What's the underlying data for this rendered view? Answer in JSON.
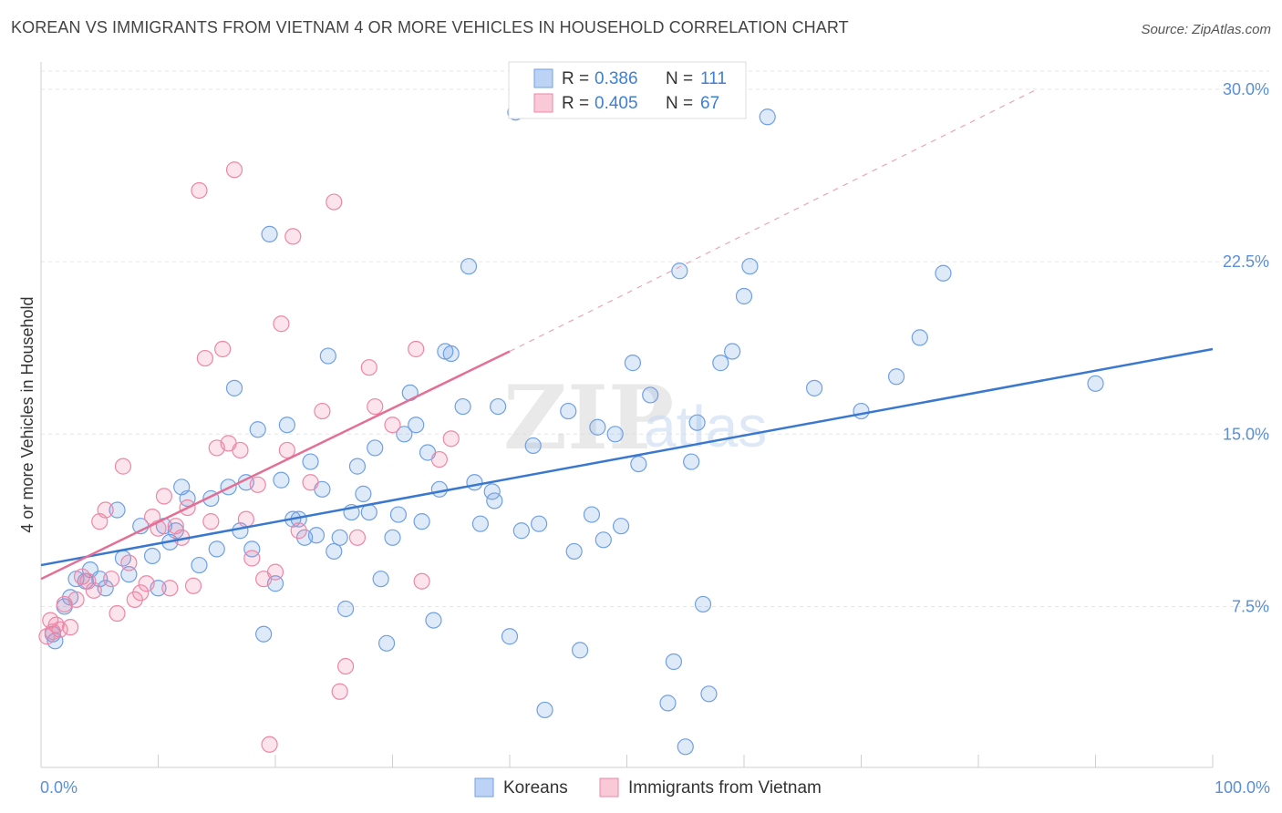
{
  "header": {
    "title": "KOREAN VS IMMIGRANTS FROM VIETNAM 4 OR MORE VEHICLES IN HOUSEHOLD CORRELATION CHART",
    "source": "Source: ZipAtlas.com"
  },
  "watermark": {
    "zip": "ZIP",
    "atlas": "atlas"
  },
  "legend": {
    "r_label": "R =",
    "n_label": "N =",
    "items": [
      {
        "name": "Koreans",
        "r": "0.386",
        "n": "111",
        "color": "#6fa0e3"
      },
      {
        "name": "Immigrants from Vietnam",
        "r": "0.405",
        "n": "67",
        "color": "#ef86a6"
      }
    ]
  },
  "chart_data": {
    "type": "scatter",
    "title": "KOREAN VS IMMIGRANTS FROM VIETNAM 4 OR MORE VEHICLES IN HOUSEHOLD CORRELATION CHART",
    "xlabel": "",
    "ylabel": "4 or more Vehicles in Household",
    "xlim": [
      0,
      100
    ],
    "ylim": [
      0,
      32
    ],
    "x_tick_labels": [
      "0.0%",
      "100.0%"
    ],
    "y_ticks": [
      7.5,
      15.0,
      22.5,
      30.0
    ],
    "y_tick_labels": [
      "7.5%",
      "15.0%",
      "22.5%",
      "30.0%"
    ],
    "grid": true,
    "legend_position": "top-center",
    "series": [
      {
        "name": "Koreans",
        "color": "#6fa0e3",
        "trend": {
          "x": [
            0,
            100
          ],
          "y": [
            9.3,
            18.7
          ]
        },
        "points": [
          [
            1,
            6.3
          ],
          [
            1.2,
            6.0
          ],
          [
            2,
            7.5
          ],
          [
            2.5,
            7.9
          ],
          [
            3,
            8.7
          ],
          [
            3.8,
            8.6
          ],
          [
            4.2,
            9.1
          ],
          [
            5,
            8.7
          ],
          [
            5.5,
            8.3
          ],
          [
            6.5,
            11.7
          ],
          [
            7,
            9.6
          ],
          [
            7.5,
            8.9
          ],
          [
            8.5,
            11.0
          ],
          [
            9.5,
            9.7
          ],
          [
            10,
            8.3
          ],
          [
            10.5,
            11.0
          ],
          [
            11,
            10.3
          ],
          [
            11.5,
            10.8
          ],
          [
            12,
            12.7
          ],
          [
            12.5,
            12.2
          ],
          [
            13.5,
            9.3
          ],
          [
            14.5,
            12.2
          ],
          [
            15,
            10.0
          ],
          [
            16,
            12.7
          ],
          [
            16.5,
            17.0
          ],
          [
            17,
            10.8
          ],
          [
            17.5,
            12.9
          ],
          [
            18,
            10.0
          ],
          [
            18.5,
            15.2
          ],
          [
            19,
            6.3
          ],
          [
            19.5,
            23.7
          ],
          [
            20,
            8.5
          ],
          [
            20.5,
            13.0
          ],
          [
            21,
            15.4
          ],
          [
            21.5,
            11.3
          ],
          [
            22,
            11.3
          ],
          [
            22.5,
            10.5
          ],
          [
            23,
            13.8
          ],
          [
            23.5,
            10.6
          ],
          [
            24,
            12.6
          ],
          [
            24.5,
            18.4
          ],
          [
            25,
            9.9
          ],
          [
            25.5,
            10.5
          ],
          [
            26,
            7.4
          ],
          [
            26.5,
            11.6
          ],
          [
            27,
            13.6
          ],
          [
            27.5,
            12.4
          ],
          [
            28,
            11.6
          ],
          [
            28.5,
            14.4
          ],
          [
            29,
            8.7
          ],
          [
            29.5,
            5.9
          ],
          [
            30,
            10.5
          ],
          [
            30.5,
            11.5
          ],
          [
            31,
            15.0
          ],
          [
            31.5,
            16.8
          ],
          [
            32,
            15.4
          ],
          [
            32.5,
            11.2
          ],
          [
            33,
            14.2
          ],
          [
            33.5,
            6.9
          ],
          [
            34,
            12.6
          ],
          [
            34.5,
            18.6
          ],
          [
            35,
            18.5
          ],
          [
            36,
            16.2
          ],
          [
            36.5,
            22.3
          ],
          [
            37,
            12.9
          ],
          [
            37.5,
            11.1
          ],
          [
            38.5,
            12.5
          ],
          [
            38.7,
            12.1
          ],
          [
            39,
            16.2
          ],
          [
            40,
            6.2
          ],
          [
            40.5,
            29.0
          ],
          [
            41,
            10.8
          ],
          [
            42,
            14.5
          ],
          [
            42.5,
            11.1
          ],
          [
            43,
            3.0
          ],
          [
            45,
            16.0
          ],
          [
            45.5,
            9.9
          ],
          [
            46,
            5.6
          ],
          [
            47,
            11.5
          ],
          [
            47.5,
            15.3
          ],
          [
            48,
            10.4
          ],
          [
            49,
            15.0
          ],
          [
            49.5,
            11.0
          ],
          [
            50.5,
            18.1
          ],
          [
            51,
            13.7
          ],
          [
            52,
            16.7
          ],
          [
            53.5,
            3.3
          ],
          [
            54,
            5.1
          ],
          [
            54.5,
            22.1
          ],
          [
            55,
            1.4
          ],
          [
            55.5,
            13.8
          ],
          [
            56,
            15.5
          ],
          [
            56.5,
            7.6
          ],
          [
            57,
            3.7
          ],
          [
            58,
            18.1
          ],
          [
            59,
            18.6
          ],
          [
            60,
            21.0
          ],
          [
            60.5,
            22.3
          ],
          [
            62,
            28.8
          ],
          [
            66,
            17.0
          ],
          [
            70,
            16.0
          ],
          [
            73,
            17.5
          ],
          [
            75,
            19.2
          ],
          [
            77,
            22.0
          ],
          [
            90,
            17.2
          ]
        ]
      },
      {
        "name": "Immigrants from Vietnam",
        "color": "#ef86a6",
        "trend": {
          "x": [
            0,
            40
          ],
          "y": [
            8.7,
            18.6
          ]
        },
        "trend_extension": {
          "x": [
            40,
            85
          ],
          "y": [
            18.6,
            30.0
          ]
        },
        "points": [
          [
            0.5,
            6.2
          ],
          [
            0.8,
            6.9
          ],
          [
            1,
            6.4
          ],
          [
            1.3,
            6.7
          ],
          [
            1.6,
            6.5
          ],
          [
            2,
            7.6
          ],
          [
            2.5,
            6.6
          ],
          [
            3,
            7.8
          ],
          [
            3.5,
            8.8
          ],
          [
            4,
            8.6
          ],
          [
            4.5,
            8.2
          ],
          [
            5,
            11.2
          ],
          [
            5.5,
            11.7
          ],
          [
            6,
            8.7
          ],
          [
            6.5,
            7.2
          ],
          [
            7,
            13.6
          ],
          [
            7.5,
            9.4
          ],
          [
            8,
            7.8
          ],
          [
            8.5,
            8.1
          ],
          [
            9,
            8.5
          ],
          [
            9.5,
            11.4
          ],
          [
            10,
            10.9
          ],
          [
            10.5,
            12.3
          ],
          [
            11,
            8.3
          ],
          [
            11.5,
            11.0
          ],
          [
            12,
            10.5
          ],
          [
            12.5,
            11.8
          ],
          [
            13,
            8.4
          ],
          [
            13.5,
            25.6
          ],
          [
            14,
            18.3
          ],
          [
            14.5,
            11.2
          ],
          [
            15,
            14.4
          ],
          [
            15.5,
            18.7
          ],
          [
            16,
            14.6
          ],
          [
            16.5,
            26.5
          ],
          [
            17,
            14.3
          ],
          [
            17.5,
            11.3
          ],
          [
            18,
            9.6
          ],
          [
            18.5,
            12.8
          ],
          [
            19,
            8.7
          ],
          [
            19.5,
            1.5
          ],
          [
            20,
            9.0
          ],
          [
            20.5,
            19.8
          ],
          [
            21,
            14.3
          ],
          [
            21.5,
            23.6
          ],
          [
            22,
            10.8
          ],
          [
            23,
            12.9
          ],
          [
            24,
            16.0
          ],
          [
            25,
            25.1
          ],
          [
            25.5,
            3.8
          ],
          [
            26,
            4.9
          ],
          [
            27,
            10.5
          ],
          [
            28,
            17.9
          ],
          [
            28.5,
            16.2
          ],
          [
            30,
            15.4
          ],
          [
            32,
            18.7
          ],
          [
            32.5,
            8.6
          ],
          [
            34,
            13.9
          ],
          [
            35,
            14.8
          ]
        ]
      }
    ]
  }
}
